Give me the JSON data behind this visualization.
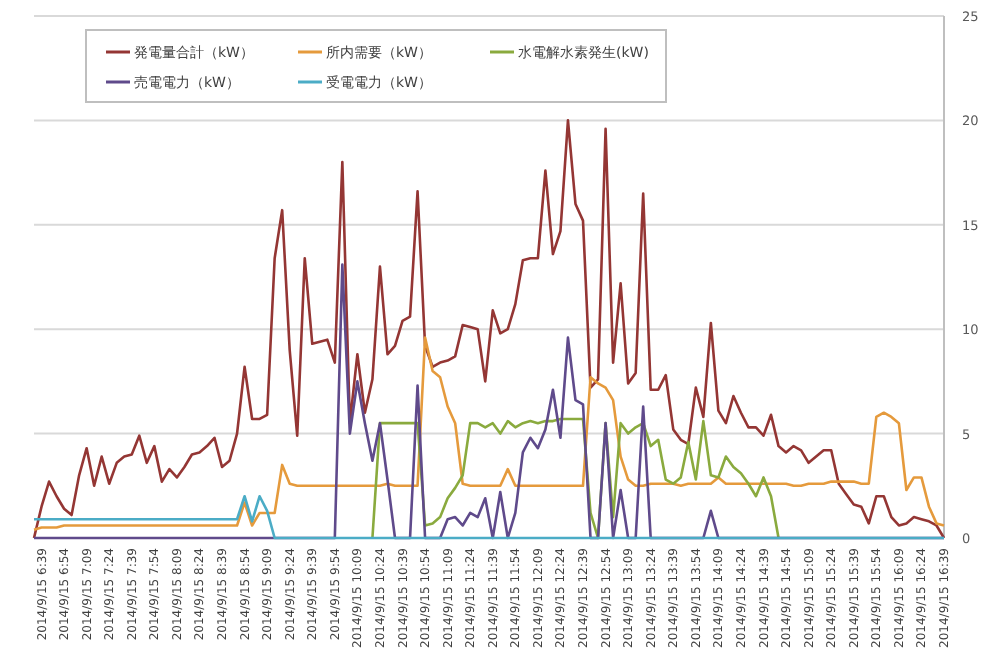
{
  "chart_data": {
    "type": "line",
    "categories": [
      null,
      "2014/9/15 6:39",
      null,
      null,
      "2014/9/15 6:54",
      null,
      null,
      "2014/9/15 7:09",
      null,
      null,
      "2014/9/15 7:24",
      null,
      null,
      "2014/9/15 7:39",
      null,
      null,
      "2014/9/15 7:54",
      null,
      null,
      "2014/9/15 8:09",
      null,
      null,
      "2014/9/15 8:24",
      null,
      null,
      "2014/9/15 8:39",
      null,
      null,
      "2014/9/15 8:54",
      null,
      null,
      "2014/9/15 9:09",
      null,
      null,
      "2014/9/15 9:24",
      null,
      null,
      "2014/9/15 9:39",
      null,
      null,
      "2014/9/15 9:54",
      null,
      null,
      "2014/9/15 10:09",
      null,
      null,
      "2014/9/15 10:24",
      null,
      null,
      "2014/9/15 10:39",
      null,
      null,
      "2014/9/15 10:54",
      null,
      null,
      "2014/9/15 11:09",
      null,
      null,
      "2014/9/15 11:24",
      null,
      null,
      "2014/9/15 11:39",
      null,
      null,
      "2014/9/15 11:54",
      null,
      null,
      "2014/9/15 12:09",
      null,
      null,
      "2014/9/15 12:24",
      null,
      null,
      "2014/9/15 12:39",
      null,
      null,
      "2014/9/15 12:54",
      null,
      null,
      "2014/9/15 13:09",
      null,
      null,
      "2014/9/15 13:24",
      null,
      null,
      "2014/9/15 13:39",
      null,
      null,
      "2014/9/15 13:54",
      null,
      null,
      "2014/9/15 14:09",
      null,
      null,
      "2014/9/15 14:24",
      null,
      null,
      "2014/9/15 14:39",
      null,
      null,
      "2014/9/15 14:54",
      null,
      null,
      "2014/9/15 15:09",
      null,
      null,
      "2014/9/15 15:24",
      null,
      null,
      "2014/9/15 15:39",
      null,
      null,
      "2014/9/15 15:54",
      null,
      null,
      "2014/9/15 16:09",
      null,
      null,
      "2014/9/15 16:24",
      null,
      null,
      "2014/9/15 16:39"
    ],
    "series": [
      {
        "name": "発電量合計（kW）",
        "color": "#943634",
        "values": [
          0,
          1.5,
          2.7,
          2.0,
          1.4,
          1.1,
          3.0,
          4.3,
          2.5,
          3.9,
          2.6,
          3.6,
          3.9,
          4.0,
          4.9,
          3.6,
          4.4,
          2.7,
          3.3,
          2.9,
          3.4,
          4.0,
          4.1,
          4.4,
          4.8,
          3.4,
          3.7,
          5.0,
          8.2,
          5.7,
          5.7,
          5.9,
          13.4,
          15.7,
          9.0,
          4.9,
          13.4,
          9.3,
          9.4,
          9.5,
          8.4,
          18.0,
          5.5,
          8.8,
          6.0,
          7.6,
          13.0,
          8.8,
          9.2,
          10.4,
          10.6,
          16.6,
          9.2,
          8.2,
          8.4,
          8.5,
          8.7,
          10.2,
          10.1,
          10.0,
          7.5,
          10.9,
          9.8,
          10.0,
          11.2,
          13.3,
          13.4,
          13.4,
          17.6,
          13.6,
          14.7,
          20.0,
          16.0,
          15.2,
          7.2,
          7.6,
          19.6,
          8.4,
          12.2,
          7.4,
          7.9,
          16.5,
          7.1,
          7.1,
          7.8,
          5.2,
          4.7,
          4.5,
          7.2,
          5.8,
          10.3,
          6.1,
          5.5,
          6.8,
          6.0,
          5.3,
          5.3,
          4.9,
          5.9,
          4.4,
          4.1,
          4.4,
          4.2,
          3.6,
          3.9,
          4.2,
          4.2,
          2.6,
          2.1,
          1.6,
          1.5,
          0.7,
          2.0,
          2.0,
          1.0,
          0.6,
          0.7,
          1.0,
          0.9,
          0.8,
          0.6,
          0
        ]
      },
      {
        "name": "所内需要（kW）",
        "color": "#e59a3c",
        "values": [
          0.4,
          0.5,
          0.5,
          0.5,
          0.6,
          0.6,
          0.6,
          0.6,
          0.6,
          0.6,
          0.6,
          0.6,
          0.6,
          0.6,
          0.6,
          0.6,
          0.6,
          0.6,
          0.6,
          0.6,
          0.6,
          0.6,
          0.6,
          0.6,
          0.6,
          0.6,
          0.6,
          0.6,
          1.7,
          0.6,
          1.2,
          1.2,
          1.2,
          3.5,
          2.6,
          2.5,
          2.5,
          2.5,
          2.5,
          2.5,
          2.5,
          2.5,
          2.5,
          2.5,
          2.5,
          2.5,
          2.5,
          2.6,
          2.5,
          2.5,
          2.5,
          2.5,
          9.6,
          8.0,
          7.7,
          6.3,
          5.5,
          2.6,
          2.5,
          2.5,
          2.5,
          2.5,
          2.5,
          3.3,
          2.5,
          2.5,
          2.5,
          2.5,
          2.5,
          2.5,
          2.5,
          2.5,
          2.5,
          2.5,
          7.7,
          7.4,
          7.2,
          6.6,
          3.9,
          2.8,
          2.5,
          2.5,
          2.6,
          2.6,
          2.6,
          2.6,
          2.5,
          2.6,
          2.6,
          2.6,
          2.6,
          2.9,
          2.6,
          2.6,
          2.6,
          2.6,
          2.6,
          2.6,
          2.6,
          2.6,
          2.6,
          2.5,
          2.5,
          2.6,
          2.6,
          2.6,
          2.7,
          2.7,
          2.7,
          2.7,
          2.6,
          2.6,
          5.8,
          6.0,
          5.8,
          5.5,
          2.3,
          2.9,
          2.9,
          1.5,
          0.7,
          0.6
        ]
      },
      {
        "name": "水電解水素発生(kW)",
        "color": "#8aaa3e",
        "values": [
          null,
          null,
          null,
          null,
          null,
          null,
          null,
          null,
          null,
          null,
          null,
          null,
          null,
          null,
          null,
          null,
          null,
          null,
          null,
          null,
          null,
          null,
          null,
          null,
          null,
          null,
          null,
          null,
          null,
          null,
          null,
          null,
          null,
          null,
          null,
          null,
          null,
          null,
          null,
          null,
          null,
          null,
          null,
          null,
          null,
          0,
          5.5,
          5.5,
          5.5,
          5.5,
          5.5,
          5.5,
          0.6,
          0.7,
          1.0,
          1.9,
          2.4,
          3.0,
          5.5,
          5.5,
          5.3,
          5.5,
          5.0,
          5.6,
          5.3,
          5.5,
          5.6,
          5.5,
          5.6,
          5.6,
          5.7,
          5.7,
          5.7,
          5.7,
          1.2,
          0,
          5.5,
          1.0,
          5.5,
          5.0,
          5.3,
          5.5,
          4.4,
          4.7,
          2.8,
          2.6,
          2.9,
          4.6,
          2.8,
          5.6,
          3.0,
          2.9,
          3.9,
          3.4,
          3.1,
          2.6,
          2.0,
          2.9,
          2.0,
          0,
          null,
          null,
          null,
          null,
          null,
          null,
          null,
          null,
          null,
          null,
          null,
          null,
          null,
          null,
          null,
          null,
          null,
          null,
          null,
          null,
          null,
          null
        ]
      },
      {
        "name": "売電電力（kW）",
        "color": "#5f4a8b",
        "values": [
          0,
          0,
          0,
          0,
          0,
          0,
          0,
          0,
          0,
          0,
          0,
          0,
          0,
          0,
          0,
          0,
          0,
          0,
          0,
          0,
          0,
          0,
          0,
          0,
          0,
          0,
          0,
          0,
          0,
          0,
          0,
          0,
          0,
          0,
          0,
          0,
          0,
          0,
          0,
          0,
          0,
          13.1,
          5.0,
          7.5,
          5.5,
          3.7,
          5.5,
          2.8,
          0,
          0,
          0,
          7.3,
          0,
          0,
          0,
          0.9,
          1.0,
          0.6,
          1.2,
          1.0,
          1.9,
          0,
          2.2,
          0,
          1.2,
          4.1,
          4.8,
          4.3,
          5.2,
          7.1,
          4.8,
          9.6,
          6.6,
          6.4,
          0,
          0,
          5.5,
          0,
          2.3,
          0,
          0,
          6.3,
          0,
          0,
          0,
          0,
          0,
          0,
          0,
          0,
          1.3,
          0,
          0,
          0,
          0,
          0,
          0,
          0,
          0,
          0,
          0,
          0,
          0,
          0,
          0,
          0,
          0,
          0,
          0,
          0,
          0,
          0,
          0,
          0,
          0,
          0,
          0,
          0,
          0,
          0,
          0,
          0
        ]
      },
      {
        "name": "受電電力（kW）",
        "color": "#4bacc6",
        "values": [
          0.9,
          0.9,
          0.9,
          0.9,
          0.9,
          0.9,
          0.9,
          0.9,
          0.9,
          0.9,
          0.9,
          0.9,
          0.9,
          0.9,
          0.9,
          0.9,
          0.9,
          0.9,
          0.9,
          0.9,
          0.9,
          0.9,
          0.9,
          0.9,
          0.9,
          0.9,
          0.9,
          0.9,
          2.0,
          0.8,
          2.0,
          1.3,
          0,
          0,
          0,
          0,
          0,
          0,
          0,
          0,
          0,
          0,
          0,
          0,
          0,
          0,
          0,
          0,
          0,
          0,
          0,
          0,
          0,
          0,
          0,
          0,
          0,
          0,
          0,
          0,
          0,
          0,
          0,
          0,
          0,
          0,
          0,
          0,
          0,
          0,
          0,
          0,
          0,
          0,
          0,
          0,
          0,
          0,
          0,
          0,
          0,
          0,
          0,
          0,
          0,
          0,
          0,
          0,
          0,
          0,
          0,
          0,
          0,
          0,
          0,
          0,
          0,
          0,
          0,
          0,
          0,
          0,
          0,
          0,
          0,
          0,
          0,
          0,
          0,
          0,
          0,
          0,
          0,
          0,
          0,
          0,
          0,
          0,
          0,
          0,
          0,
          0
        ]
      }
    ],
    "ylim": [
      0,
      25
    ],
    "yticks": [
      0,
      5,
      10,
      15,
      20,
      25
    ],
    "grid": "y",
    "legend": "top left"
  }
}
